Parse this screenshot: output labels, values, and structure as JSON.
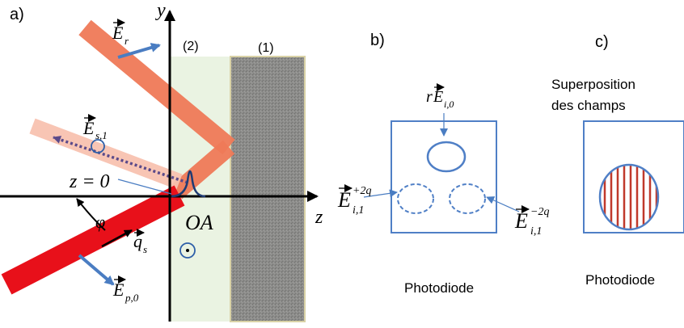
{
  "panels": {
    "a": {
      "tag": "a)"
    },
    "b": {
      "tag": "b)"
    },
    "c": {
      "tag": "c)"
    }
  },
  "axes": {
    "y": "y",
    "z": "z"
  },
  "media": {
    "region2": "(2)",
    "region1": "(1)"
  },
  "labels": {
    "origin_eq": "z = 0",
    "phi": "φ",
    "q_vec": "q",
    "q_sub": "s",
    "oa": "OA",
    "e_r": "E",
    "e_r_sub": "r",
    "e_s1": "E",
    "e_s1_sub": "s,1",
    "e_p0": "E",
    "e_p0_sub": "p,0"
  },
  "panel_b": {
    "top_label_r": "r",
    "top_label_E": "E",
    "top_sub": "i,0",
    "left_E": "E",
    "left_sup": "+2q",
    "left_sub": "i,1",
    "right_E": "E",
    "right_sup": "−2q",
    "right_sub": "i,1",
    "caption": "Photodiode"
  },
  "panel_c": {
    "title_line1": "Superposition",
    "title_line2": "des champs",
    "caption": "Photodiode"
  },
  "colors": {
    "beam_red": "#e8101a",
    "beam_orange": "#f07a58",
    "beam_pale": "#f8c2b0",
    "medium2": "#eaf3e2",
    "medium1": "#8a8a88",
    "medium1_border": "#d9d2a6",
    "vector_blue": "#4a7dc2",
    "outline_blue": "#4f7fc6",
    "fringe_red": "#c0392b",
    "dotted_purple": "#5b4a8a"
  }
}
